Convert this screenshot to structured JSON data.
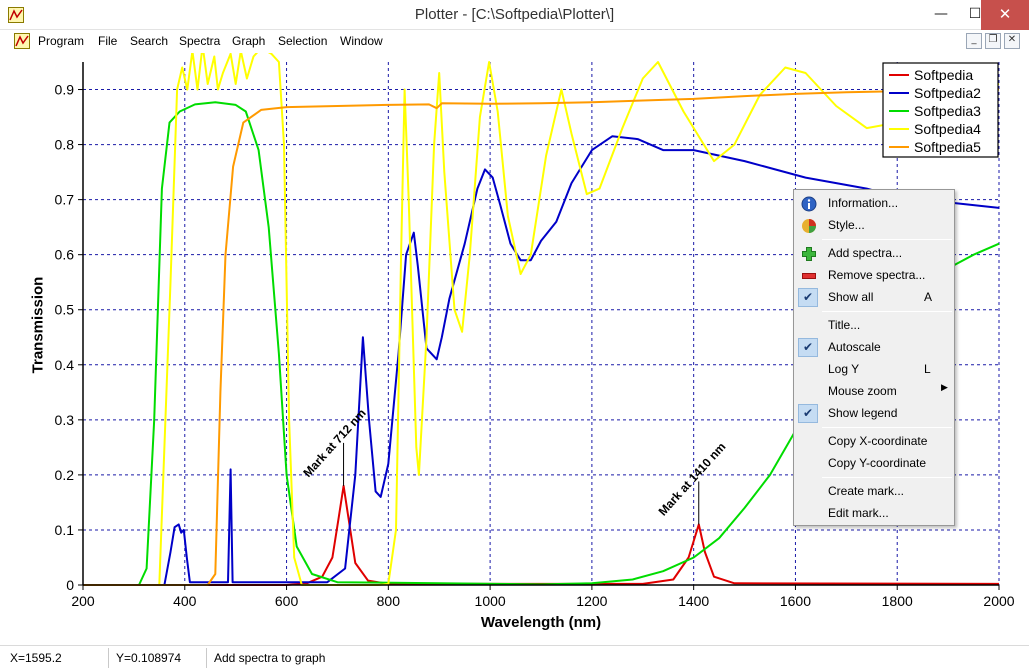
{
  "window": {
    "title": "Plotter - [C:\\Softpedia\\Plotter\\]",
    "minimize": "—",
    "maximize": "☐",
    "close": "✕"
  },
  "menubar": {
    "items": [
      "Program",
      "File",
      "Search",
      "Spectra",
      "Graph",
      "Selection",
      "Window"
    ],
    "mdi_min": "_",
    "mdi_restore": "❐",
    "mdi_close": "✕"
  },
  "context_menu": {
    "items": [
      {
        "label": "Information...",
        "icon": "info-icon"
      },
      {
        "label": "Style...",
        "icon": "style-icon"
      },
      {
        "label": "Add spectra...",
        "icon": "add-icon"
      },
      {
        "label": "Remove spectra...",
        "icon": "remove-icon"
      },
      {
        "label": "Show all",
        "shortcut": "A",
        "checked": true
      },
      {
        "label": "Title..."
      },
      {
        "label": "Autoscale",
        "checked": true
      },
      {
        "label": "Log Y",
        "shortcut": "L"
      },
      {
        "label": "Mouse zoom",
        "submenu": true
      },
      {
        "label": "Show legend",
        "checked": true
      },
      {
        "label": "Copy X-coordinate"
      },
      {
        "label": "Copy Y-coordinate"
      },
      {
        "label": "Create mark..."
      },
      {
        "label": "Edit mark..."
      }
    ],
    "check_glyph": "✔",
    "submenu_glyph": "▶"
  },
  "statusbar": {
    "x": "X=1595.2",
    "y": "Y=0.108974",
    "message": "Add spectra to graph"
  },
  "chart_data": {
    "type": "line",
    "xlabel": "Wavelength (nm)",
    "ylabel": "Transmission",
    "xlim": [
      200,
      2000
    ],
    "ylim": [
      0,
      0.95
    ],
    "x_ticks": [
      200,
      400,
      600,
      800,
      1000,
      1200,
      1400,
      1600,
      1800,
      2000
    ],
    "y_ticks": [
      0,
      0.1,
      0.2,
      0.3,
      0.4,
      0.5,
      0.6,
      0.7,
      0.8,
      0.9
    ],
    "x_tick_labels": [
      "200",
      "400",
      "600",
      "800",
      "1000",
      "1200",
      "1400",
      "1600",
      "1800",
      "2000"
    ],
    "y_tick_labels": [
      "0",
      "0.1",
      "0.2",
      "0.3",
      "0.4",
      "0.5",
      "0.6",
      "0.7",
      "0.8",
      "0.9"
    ],
    "grid": true,
    "legend_position": "top-right",
    "series": [
      {
        "name": "Softpedia",
        "color": "#e00000",
        "points": [
          [
            200,
            0
          ],
          [
            600,
            0
          ],
          [
            640,
            0.003
          ],
          [
            670,
            0.015
          ],
          [
            690,
            0.05
          ],
          [
            702,
            0.12
          ],
          [
            712,
            0.18
          ],
          [
            722,
            0.12
          ],
          [
            735,
            0.04
          ],
          [
            760,
            0.008
          ],
          [
            800,
            0.002
          ],
          [
            1300,
            0.002
          ],
          [
            1360,
            0.01
          ],
          [
            1390,
            0.05
          ],
          [
            1410,
            0.11
          ],
          [
            1422,
            0.06
          ],
          [
            1440,
            0.015
          ],
          [
            1480,
            0.003
          ],
          [
            2000,
            0.002
          ]
        ]
      },
      {
        "name": "Softpedia2",
        "color": "#0000c8",
        "points": [
          [
            200,
            0
          ],
          [
            360,
            0
          ],
          [
            372,
            0.06
          ],
          [
            380,
            0.105
          ],
          [
            388,
            0.11
          ],
          [
            393,
            0.095
          ],
          [
            398,
            0.1
          ],
          [
            404,
            0.05
          ],
          [
            410,
            0.005
          ],
          [
            485,
            0.005
          ],
          [
            490,
            0.21
          ],
          [
            494,
            0.005
          ],
          [
            680,
            0.005
          ],
          [
            715,
            0.03
          ],
          [
            735,
            0.2
          ],
          [
            750,
            0.45
          ],
          [
            762,
            0.3
          ],
          [
            775,
            0.17
          ],
          [
            785,
            0.16
          ],
          [
            800,
            0.22
          ],
          [
            820,
            0.42
          ],
          [
            835,
            0.6
          ],
          [
            850,
            0.64
          ],
          [
            858,
            0.58
          ],
          [
            875,
            0.43
          ],
          [
            895,
            0.41
          ],
          [
            905,
            0.45
          ],
          [
            920,
            0.52
          ],
          [
            950,
            0.62
          ],
          [
            975,
            0.72
          ],
          [
            990,
            0.755
          ],
          [
            1005,
            0.74
          ],
          [
            1020,
            0.69
          ],
          [
            1040,
            0.62
          ],
          [
            1060,
            0.59
          ],
          [
            1080,
            0.59
          ],
          [
            1100,
            0.625
          ],
          [
            1130,
            0.66
          ],
          [
            1160,
            0.73
          ],
          [
            1200,
            0.79
          ],
          [
            1240,
            0.815
          ],
          [
            1290,
            0.81
          ],
          [
            1340,
            0.79
          ],
          [
            1400,
            0.79
          ],
          [
            1450,
            0.78
          ],
          [
            1500,
            0.77
          ],
          [
            1560,
            0.755
          ],
          [
            1620,
            0.74
          ],
          [
            1680,
            0.73
          ],
          [
            1740,
            0.72
          ],
          [
            1800,
            0.705
          ],
          [
            1900,
            0.695
          ],
          [
            2000,
            0.685
          ]
        ]
      },
      {
        "name": "Softpedia3",
        "color": "#00dc00",
        "points": [
          [
            200,
            0
          ],
          [
            310,
            0
          ],
          [
            325,
            0.03
          ],
          [
            340,
            0.3
          ],
          [
            355,
            0.72
          ],
          [
            370,
            0.84
          ],
          [
            390,
            0.86
          ],
          [
            420,
            0.873
          ],
          [
            460,
            0.877
          ],
          [
            500,
            0.872
          ],
          [
            520,
            0.86
          ],
          [
            545,
            0.79
          ],
          [
            565,
            0.65
          ],
          [
            585,
            0.42
          ],
          [
            600,
            0.2
          ],
          [
            620,
            0.07
          ],
          [
            650,
            0.02
          ],
          [
            700,
            0.005
          ],
          [
            1100,
            0.001
          ],
          [
            1200,
            0.003
          ],
          [
            1280,
            0.01
          ],
          [
            1340,
            0.025
          ],
          [
            1400,
            0.05
          ],
          [
            1450,
            0.085
          ],
          [
            1500,
            0.14
          ],
          [
            1550,
            0.2
          ],
          [
            1600,
            0.28
          ],
          [
            1650,
            0.36
          ],
          [
            1700,
            0.43
          ],
          [
            1750,
            0.48
          ],
          [
            1800,
            0.51
          ],
          [
            1850,
            0.545
          ],
          [
            1900,
            0.575
          ],
          [
            1950,
            0.6
          ],
          [
            2000,
            0.62
          ]
        ]
      },
      {
        "name": "Softpedia4",
        "color": "#ffff00",
        "points": [
          [
            200,
            0
          ],
          [
            350,
            0
          ],
          [
            372,
            0.55
          ],
          [
            385,
            0.9
          ],
          [
            395,
            0.94
          ],
          [
            405,
            0.9
          ],
          [
            415,
            0.97
          ],
          [
            425,
            0.9
          ],
          [
            435,
            0.98
          ],
          [
            445,
            0.91
          ],
          [
            458,
            0.96
          ],
          [
            465,
            0.9
          ],
          [
            475,
            0.93
          ],
          [
            490,
            0.965
          ],
          [
            500,
            0.91
          ],
          [
            510,
            0.97
          ],
          [
            522,
            0.92
          ],
          [
            535,
            0.96
          ],
          [
            550,
            0.975
          ],
          [
            570,
            0.965
          ],
          [
            585,
            0.95
          ],
          [
            595,
            0.8
          ],
          [
            605,
            0.3
          ],
          [
            615,
            0.05
          ],
          [
            630,
            0
          ],
          [
            780,
            0
          ],
          [
            800,
            0.002
          ],
          [
            815,
            0.1
          ],
          [
            825,
            0.6
          ],
          [
            832,
            0.9
          ],
          [
            840,
            0.7
          ],
          [
            855,
            0.25
          ],
          [
            860,
            0.2
          ],
          [
            875,
            0.45
          ],
          [
            890,
            0.8
          ],
          [
            900,
            0.93
          ],
          [
            910,
            0.75
          ],
          [
            930,
            0.5
          ],
          [
            945,
            0.46
          ],
          [
            960,
            0.6
          ],
          [
            980,
            0.85
          ],
          [
            998,
            0.95
          ],
          [
            1015,
            0.86
          ],
          [
            1035,
            0.67
          ],
          [
            1060,
            0.565
          ],
          [
            1080,
            0.6
          ],
          [
            1110,
            0.78
          ],
          [
            1140,
            0.9
          ],
          [
            1160,
            0.82
          ],
          [
            1190,
            0.71
          ],
          [
            1215,
            0.72
          ],
          [
            1260,
            0.83
          ],
          [
            1300,
            0.92
          ],
          [
            1330,
            0.95
          ],
          [
            1380,
            0.86
          ],
          [
            1440,
            0.77
          ],
          [
            1480,
            0.8
          ],
          [
            1530,
            0.89
          ],
          [
            1580,
            0.94
          ],
          [
            1620,
            0.93
          ],
          [
            1680,
            0.87
          ],
          [
            1740,
            0.83
          ],
          [
            1800,
            0.84
          ],
          [
            1860,
            0.875
          ],
          [
            1920,
            0.9
          ],
          [
            2000,
            0.91
          ]
        ]
      },
      {
        "name": "Softpedia5",
        "color": "#ff9a00",
        "points": [
          [
            200,
            0
          ],
          [
            445,
            0
          ],
          [
            460,
            0.02
          ],
          [
            470,
            0.35
          ],
          [
            480,
            0.6
          ],
          [
            495,
            0.76
          ],
          [
            515,
            0.84
          ],
          [
            550,
            0.863
          ],
          [
            600,
            0.868
          ],
          [
            700,
            0.87
          ],
          [
            800,
            0.872
          ],
          [
            880,
            0.873
          ],
          [
            895,
            0.866
          ],
          [
            905,
            0.875
          ],
          [
            1000,
            0.874
          ],
          [
            1100,
            0.875
          ],
          [
            1200,
            0.877
          ],
          [
            1300,
            0.88
          ],
          [
            1400,
            0.883
          ],
          [
            1500,
            0.888
          ],
          [
            1600,
            0.892
          ],
          [
            1700,
            0.895
          ],
          [
            1800,
            0.897
          ],
          [
            1900,
            0.899
          ],
          [
            2000,
            0.9
          ]
        ]
      }
    ],
    "annotations": [
      {
        "text": "Mark at 712 nm",
        "x": 712,
        "y": 0.18
      },
      {
        "text": "Mark at 1410 nm",
        "x": 1410,
        "y": 0.11
      }
    ]
  }
}
